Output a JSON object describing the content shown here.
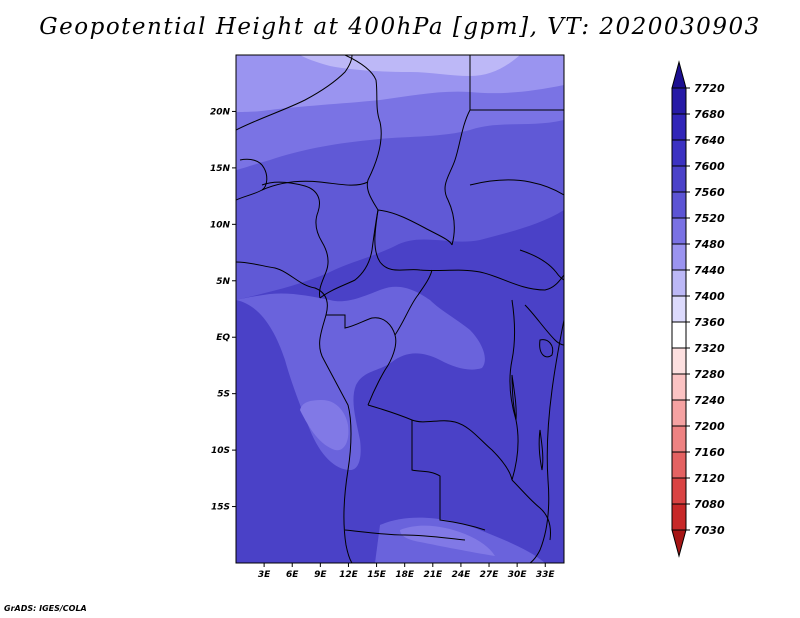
{
  "title": "Geopotential Height at 400hPa [gpm], VT: 2020030903",
  "credit": "GrADS: IGES/COLA",
  "map": {
    "lon_range": [
      0,
      35
    ],
    "lat_range": [
      -20,
      25
    ],
    "x_ticks": [
      "3E",
      "6E",
      "9E",
      "12E",
      "15E",
      "18E",
      "21E",
      "24E",
      "27E",
      "30E",
      "33E"
    ],
    "x_tick_values": [
      3,
      6,
      9,
      12,
      15,
      18,
      21,
      24,
      27,
      30,
      33
    ],
    "y_ticks": [
      "20N",
      "15N",
      "10N",
      "5N",
      "EQ",
      "5S",
      "10S",
      "15S"
    ],
    "y_tick_values": [
      20,
      15,
      10,
      5,
      0,
      -5,
      -10,
      -15
    ]
  },
  "colorbar": {
    "labels": [
      "7720",
      "7680",
      "7640",
      "7600",
      "7560",
      "7520",
      "7480",
      "7440",
      "7400",
      "7360",
      "7320",
      "7280",
      "7240",
      "7200",
      "7160",
      "7120",
      "7080",
      "7030"
    ],
    "colors": [
      "#1c0f91",
      "#261aa6",
      "#3125b8",
      "#3c32c2",
      "#4b42c9",
      "#5c54d4",
      "#7a72e4",
      "#9b94f0",
      "#bcb8f6",
      "#dcdafc",
      "#ffffff",
      "#fde0e0",
      "#fbc3c3",
      "#f5a2a2",
      "#ee8282",
      "#e46262",
      "#d94343",
      "#c72828",
      "#a61515"
    ]
  }
}
